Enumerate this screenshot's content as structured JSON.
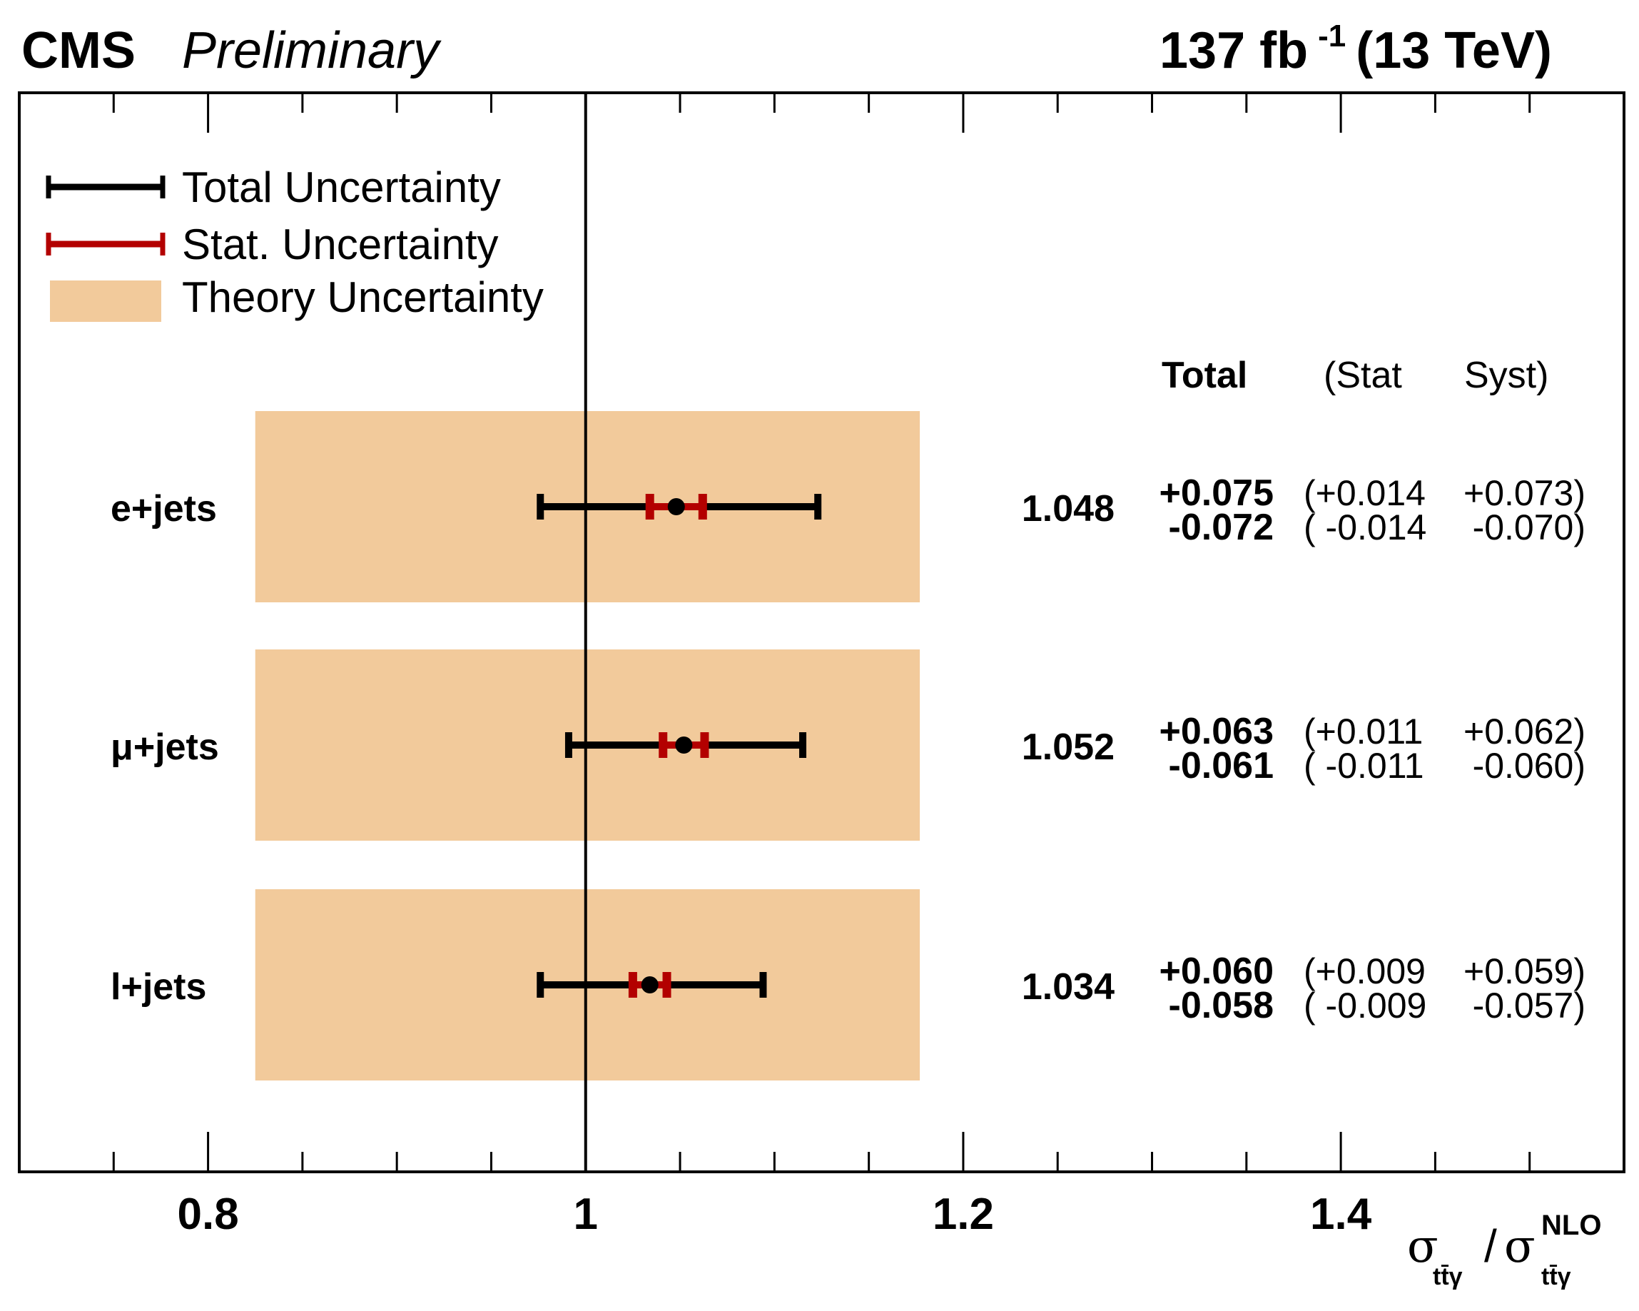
{
  "header": {
    "experiment": "CMS",
    "status": "Preliminary",
    "lumi_value": "137 fb",
    "lumi_exp": "-1",
    "energy": "(13 TeV)"
  },
  "legend": {
    "total": "Total Uncertainty",
    "stat": "Stat. Uncertainty",
    "theory": "Theory Uncertainty"
  },
  "table_header": {
    "total": "Total",
    "stat": "(Stat",
    "syst": "Syst)"
  },
  "axis": {
    "sigma": "σ",
    "sub": "tt̄γ",
    "slash": "/",
    "sup": "NLO"
  },
  "colors": {
    "total": "#000000",
    "stat": "#b30000",
    "theory": "#f2ca9b"
  },
  "chart_data": {
    "type": "forest",
    "title": "",
    "xlabel": "σ_ttγ / σ_ttγ^NLO",
    "xlim": [
      0.7,
      1.55
    ],
    "xticks": [
      0.8,
      1,
      1.2,
      1.4
    ],
    "xtick_labels": [
      "0.8",
      "1",
      "1.2",
      "1.4"
    ],
    "reference_line": 1.0,
    "theory_band": [
      0.825,
      1.177
    ],
    "rows": [
      {
        "label": "e+jets",
        "value": 1.048,
        "value_label": "1.048",
        "total_up": 0.075,
        "total_down": 0.072,
        "stat_up": 0.014,
        "stat_down": 0.014,
        "syst_up": 0.073,
        "syst_down": 0.07,
        "total_up_label": "+0.075",
        "total_down_label": "-0.072",
        "stat_up_label": "(+0.014",
        "stat_down_label": "( -0.014",
        "syst_up_label": "+0.073)",
        "syst_down_label": "-0.070)"
      },
      {
        "label": "μ+jets",
        "value": 1.052,
        "value_label": "1.052",
        "total_up": 0.063,
        "total_down": 0.061,
        "stat_up": 0.011,
        "stat_down": 0.011,
        "syst_up": 0.062,
        "syst_down": 0.06,
        "total_up_label": "+0.063",
        "total_down_label": "-0.061",
        "stat_up_label": "(+0.011",
        "stat_down_label": "( -0.011",
        "syst_up_label": "+0.062)",
        "syst_down_label": "-0.060)"
      },
      {
        "label": "l+jets",
        "value": 1.034,
        "value_label": "1.034",
        "total_up": 0.06,
        "total_down": 0.058,
        "stat_up": 0.009,
        "stat_down": 0.009,
        "syst_up": 0.059,
        "syst_down": 0.057,
        "total_up_label": "+0.060",
        "total_down_label": "-0.058",
        "stat_up_label": "(+0.009",
        "stat_down_label": "( -0.009",
        "syst_up_label": "+0.059)",
        "syst_down_label": "-0.057)"
      }
    ]
  }
}
